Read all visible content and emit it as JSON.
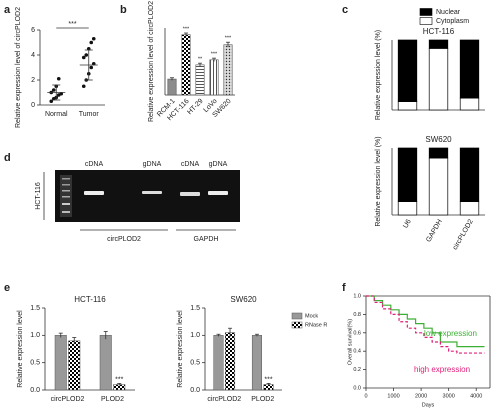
{
  "panel_labels": [
    "a",
    "b",
    "c",
    "d",
    "e",
    "f"
  ],
  "gel": {
    "lanes": [
      "cDNA",
      "gDNA",
      "cDNA",
      "gDNA"
    ],
    "sample": "HCT-116",
    "groups": [
      "circPLOD2",
      "GAPDH"
    ]
  },
  "chart_data": [
    {
      "type": "scatter",
      "ylabel": "Relative expression level of circPLOD2",
      "categories": [
        "Normal",
        "Tumor"
      ],
      "values": [
        [
          0.3,
          0.5,
          0.6,
          0.8,
          0.9,
          1.0,
          1.2,
          1.5,
          2.1
        ],
        [
          1.5,
          2.0,
          2.5,
          3.0,
          3.3,
          3.8,
          4.0,
          4.5,
          5.0,
          5.3
        ]
      ],
      "means": [
        1.0,
        3.2
      ],
      "errors": [
        0.6,
        1.2
      ],
      "annotation": "***",
      "ylim": [
        0,
        6
      ],
      "yticks": [
        0,
        2,
        4,
        6
      ]
    },
    {
      "type": "bar",
      "ylabel": "Relative expression level of circPLOD2",
      "categories": [
        "RCM-1",
        "HCT-116",
        "HT-29",
        "LoVo",
        "SW620"
      ],
      "values": [
        0.95,
        3.6,
        1.8,
        2.1,
        3.0
      ],
      "errors": [
        0.08,
        0.1,
        0.1,
        0.1,
        0.15
      ],
      "significance": [
        null,
        "***",
        "**",
        "***",
        "***"
      ],
      "patterns": [
        "solid",
        "checker",
        "hlines",
        "vlines",
        "dots"
      ],
      "color": "#8c8c8c",
      "ylim": [
        0,
        4
      ]
    },
    {
      "type": "stacked-bar",
      "title": "HCT-116",
      "ylabel": "Relative expression level (%)",
      "series": [
        {
          "name": "Cytoplasm",
          "color": "#ffffff",
          "values": [
            12,
            88,
            17
          ]
        },
        {
          "name": "Nuclear",
          "color": "#000000",
          "values": [
            88,
            12,
            83
          ]
        }
      ],
      "legend": "top-right",
      "ylim": [
        0,
        100
      ]
    },
    {
      "type": "stacked-bar",
      "title": "SW620",
      "ylabel": "Relative  expression level (%)",
      "categories": [
        "U6",
        "GAPDH",
        "circPLOD2"
      ],
      "series": [
        {
          "color": "#ffffff",
          "values": [
            20,
            85,
            20
          ]
        },
        {
          "color": "#000000",
          "values": [
            80,
            15,
            80
          ]
        }
      ],
      "ylim": [
        0,
        100
      ]
    },
    {
      "type": "grouped-bar",
      "title": "HCT-116",
      "ylabel": "Relative expression level",
      "categories": [
        "circPLOD2",
        "PLOD2"
      ],
      "series": [
        {
          "color": "#999999",
          "pattern": "solid",
          "values": [
            1.0,
            1.0
          ],
          "errors": [
            0.04,
            0.07
          ]
        },
        {
          "color": "#000000",
          "pattern": "checker",
          "values": [
            0.9,
            0.1
          ],
          "errors": [
            0.06,
            0.02
          ]
        }
      ],
      "significance": [
        null,
        "***"
      ],
      "ylim": [
        0,
        1.5
      ],
      "yticks": [
        {
          "value": 0,
          "label": "0.0"
        },
        0.5,
        {
          "value": 1,
          "label": "1.0"
        },
        1.5
      ]
    },
    {
      "type": "grouped-bar",
      "title": "SW620",
      "ylabel": "Relative expression level",
      "categories": [
        "circPLOD2",
        "PLOD2"
      ],
      "series": [
        {
          "name": "Mock",
          "color": "#999999",
          "pattern": "solid",
          "values": [
            1.0,
            1.0
          ],
          "errors": [
            0.02,
            0.02
          ]
        },
        {
          "name": "RNase R",
          "color": "#000000",
          "pattern": "checker",
          "values": [
            1.05,
            0.1
          ],
          "errors": [
            0.08,
            0.02
          ]
        }
      ],
      "significance": [
        null,
        "***"
      ],
      "legend": "right",
      "ylim": [
        0,
        1.5
      ],
      "yticks": [
        {
          "value": 0,
          "label": "0.0"
        },
        0.5,
        {
          "value": 1,
          "label": "1.0"
        },
        1.5
      ]
    },
    {
      "type": "line",
      "xlabel": "Days",
      "ylabel": "Overall survival(%)",
      "x": [
        0,
        300,
        600,
        900,
        1200,
        1500,
        1800,
        2100,
        2400,
        2700,
        3000,
        3300,
        3600,
        4000,
        4300
      ],
      "series": [
        {
          "name": "low expression",
          "color": "#3cb034",
          "style": "solid",
          "values": [
            1,
            0.95,
            0.9,
            0.85,
            0.8,
            0.75,
            0.7,
            0.65,
            0.6,
            0.5,
            0.5,
            0.45,
            0.45,
            0.45,
            0.45
          ]
        },
        {
          "name": "high expression",
          "color": "#e0207a",
          "style": "dashed",
          "values": [
            1,
            0.93,
            0.86,
            0.8,
            0.72,
            0.65,
            0.6,
            0.55,
            0.5,
            0.45,
            0.4,
            0.38,
            0.38,
            0.38,
            0.38
          ]
        }
      ],
      "legend": "in-plot",
      "xlim": [
        0,
        4500
      ],
      "xticks": [
        0,
        1000,
        2000,
        3000,
        4000
      ],
      "ylim": [
        0,
        1
      ],
      "yticks": [
        {
          "value": 0,
          "label": "0.0"
        },
        0.2,
        0.4,
        0.6,
        0.8,
        {
          "value": 1,
          "label": "1.0"
        }
      ]
    }
  ]
}
